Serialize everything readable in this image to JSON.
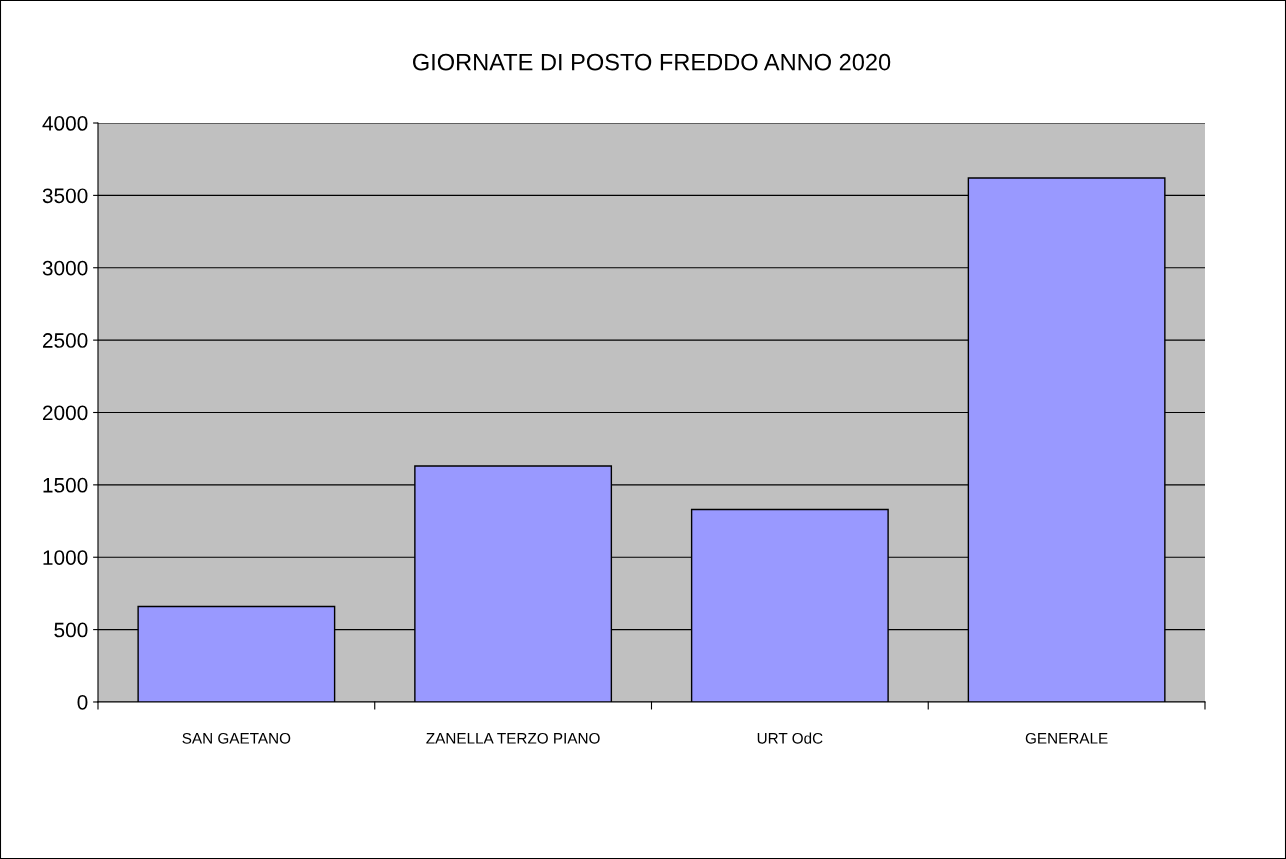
{
  "chart_data": {
    "type": "bar",
    "title": "GIORNATE DI POSTO FREDDO ANNO 2020",
    "categories": [
      "SAN GAETANO",
      "ZANELLA TERZO PIANO",
      "URT OdC",
      "GENERALE"
    ],
    "values": [
      660,
      1630,
      1330,
      3620
    ],
    "color": "#9999ff",
    "ylim": [
      0,
      4000
    ],
    "yticks": [
      0,
      500,
      1000,
      1500,
      2000,
      2500,
      3000,
      3500,
      4000
    ],
    "grid": "y"
  }
}
